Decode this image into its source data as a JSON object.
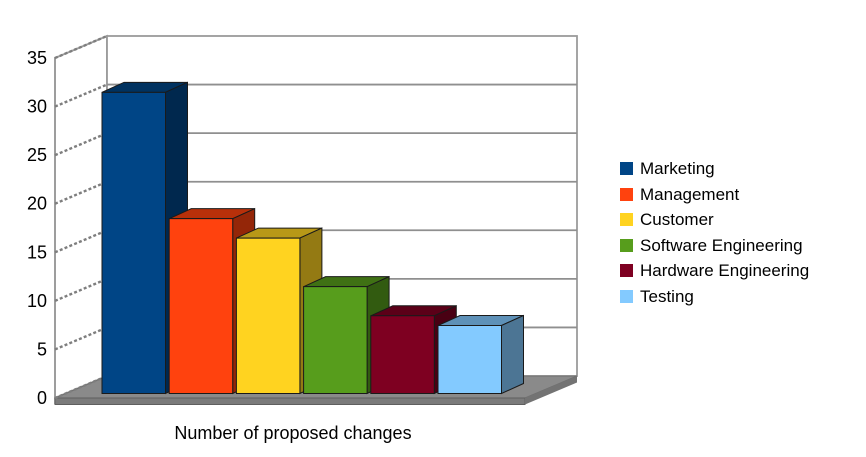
{
  "chart_data": {
    "type": "bar",
    "projection": "3d",
    "categories": [
      "Marketing",
      "Management",
      "Customer",
      "Software Engineering",
      "Hardware Engineering",
      "Testing"
    ],
    "values": [
      31,
      18,
      16,
      11,
      8,
      7
    ],
    "colors": [
      "#004586",
      "#FF420E",
      "#FFD320",
      "#579D1C",
      "#7E0021",
      "#83CAFF"
    ],
    "title": "",
    "xlabel": "Number of proposed changes",
    "ylabel": "",
    "ylim": [
      0,
      35
    ],
    "ytick_step": 5,
    "ytick_labels": [
      "0",
      "5",
      "10",
      "15",
      "20",
      "25",
      "30",
      "35"
    ],
    "grid": true,
    "legend_position": "right",
    "wall_color": "#FFFFFF",
    "floor_color": "#8A8A8A",
    "gridline_color": "#8F8F8F",
    "wall_edge_color": "#9B9B9B",
    "bar_outline_color": "#1A1A1A",
    "text_color": "#000000"
  }
}
